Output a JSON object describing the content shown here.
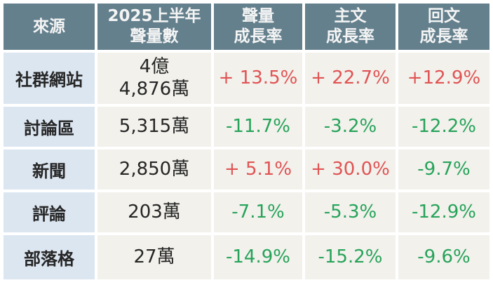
{
  "colors": {
    "page_bg": "#ffffff",
    "header_bg": "#64808d",
    "header_text": "#f4f4f4",
    "label_bg": "#dce6f1",
    "cell_bg": "#f2f1ec",
    "positive": "#e05454",
    "negative": "#27a35a",
    "text": "#262626"
  },
  "table": {
    "headers": {
      "source": "來源",
      "volume": "2025上半年\n聲量數",
      "volume_growth": "聲量\n成長率",
      "post_growth": "主文\n成長率",
      "reply_growth": "回文\n成長率"
    },
    "rows": [
      {
        "source": "社群網站",
        "volume": "4億\n4,876萬",
        "volume_growth": "+ 13.5%",
        "post_growth": "+ 22.7%",
        "reply_growth": "+12.9%"
      },
      {
        "source": "討論區",
        "volume": "5,315萬",
        "volume_growth": "-11.7%",
        "post_growth": "-3.2%",
        "reply_growth": "-12.2%"
      },
      {
        "source": "新聞",
        "volume": "2,850萬",
        "volume_growth": "+ 5.1%",
        "post_growth": "+ 30.0%",
        "reply_growth": "-9.7%"
      },
      {
        "source": "評論",
        "volume": "203萬",
        "volume_growth": "-7.1%",
        "post_growth": "-5.3%",
        "reply_growth": "-12.9%"
      },
      {
        "source": "部落格",
        "volume": "27萬",
        "volume_growth": "-14.9%",
        "post_growth": "-15.2%",
        "reply_growth": "-9.6%"
      }
    ]
  },
  "chart_data": {
    "type": "table",
    "columns": [
      "來源",
      "2025上半年聲量數",
      "聲量成長率",
      "主文成長率",
      "回文成長率"
    ],
    "rows": [
      [
        "社群網站",
        "4億4,876萬",
        "+13.5%",
        "+22.7%",
        "+12.9%"
      ],
      [
        "討論區",
        "5,315萬",
        "-11.7%",
        "-3.2%",
        "-12.2%"
      ],
      [
        "新聞",
        "2,850萬",
        "+5.1%",
        "+30.0%",
        "-9.7%"
      ],
      [
        "評論",
        "203萬",
        "-7.1%",
        "-5.3%",
        "-12.9%"
      ],
      [
        "部落格",
        "27萬",
        "-14.9%",
        "-15.2%",
        "-9.6%"
      ]
    ],
    "numeric": {
      "volume_in_wan": [
        44876,
        5315,
        2850,
        203,
        27
      ],
      "volume_growth_pct": [
        13.5,
        -11.7,
        5.1,
        -7.1,
        -14.9
      ],
      "post_growth_pct": [
        22.7,
        -3.2,
        30.0,
        -5.3,
        -15.2
      ],
      "reply_growth_pct": [
        12.9,
        -12.2,
        -9.7,
        -12.9,
        -9.6
      ]
    }
  }
}
